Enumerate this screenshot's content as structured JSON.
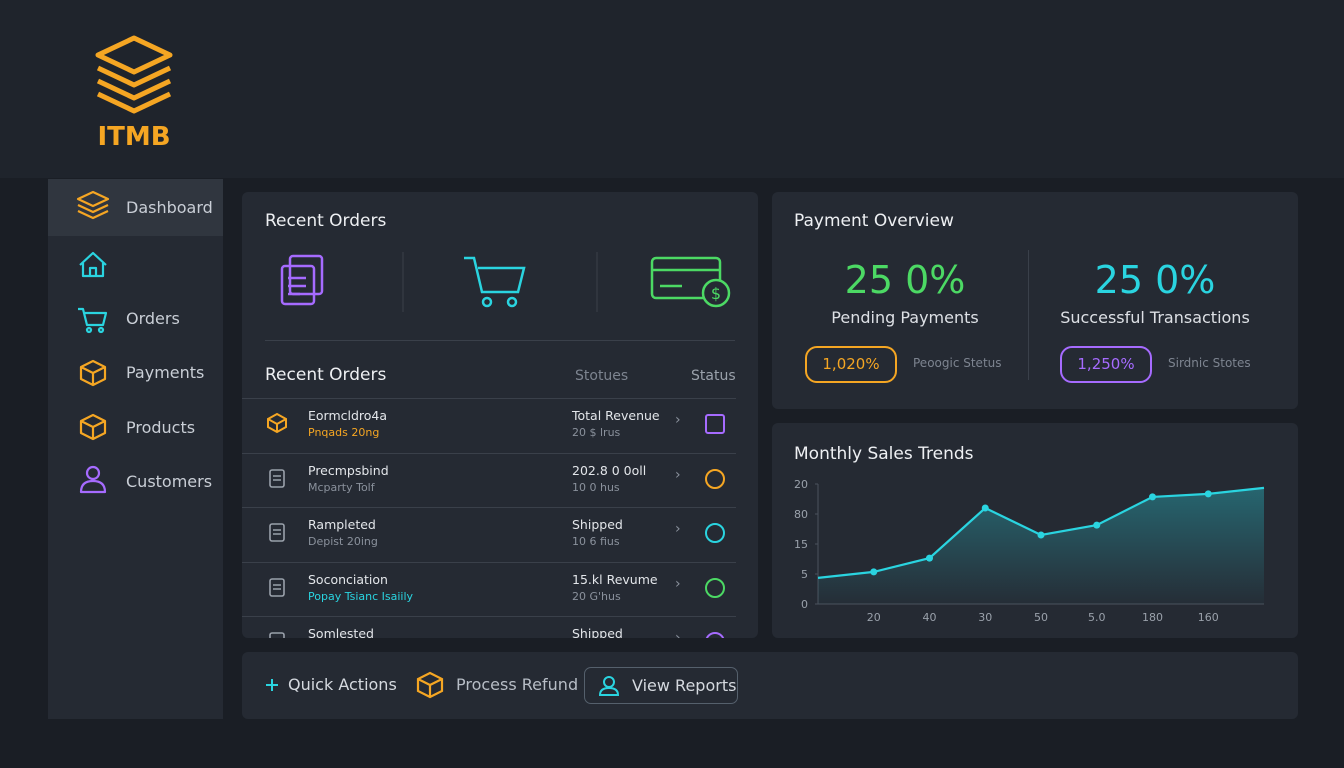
{
  "logo": {
    "text": "ITMB"
  },
  "sidebar": {
    "items": [
      "Dashboard",
      "Orders",
      "Payments",
      "Products",
      "Customers"
    ]
  },
  "recent_orders": {
    "title": "Recent Orders",
    "list_title": "Recent Orders",
    "columns": [
      "Stotues",
      "Status"
    ],
    "rows": [
      {
        "name": "Eormcldro4a",
        "sub": "Pnqads 20ng",
        "info": "Total Revenue",
        "info_sub": "20 $ lrus"
      },
      {
        "name": "Precmpsbind",
        "sub": "Mcparty Tolf",
        "info": "202.8 0 0oll",
        "info_sub": "10 0 hus"
      },
      {
        "name": "Rampleted",
        "sub": "Depist 20ing",
        "info": "Shipped",
        "info_sub": "10 6 fius"
      },
      {
        "name": "Soconciation",
        "sub": "Popay Tsianc Isaiily",
        "info": "15.kl Revume",
        "info_sub": "20 G'hus"
      },
      {
        "name": "Somlested",
        "info": "Shipped"
      }
    ]
  },
  "payment_overview": {
    "title": "Payment Overview",
    "stats": [
      {
        "value": "25 0%",
        "label": "Pending Payments",
        "badge": "1,020%",
        "note": "Peoogic Stetus"
      },
      {
        "value": "25 0%",
        "label": "Successful Transactions",
        "badge": "1,250%",
        "note": "Sirdnic Stotes"
      }
    ]
  },
  "chart_data": {
    "type": "line",
    "title": "Monthly Sales Trends",
    "categories": [
      null,
      "20",
      "40",
      "30",
      "50",
      "5.0",
      "180",
      "160",
      null
    ],
    "series": [
      {
        "color": "#2ad4e0",
        "values": [
          0.87,
          1.07,
          1.53,
          3.2,
          2.3,
          2.63,
          3.57,
          3.67,
          3.87
        ]
      }
    ],
    "ylim": [
      0,
      4
    ],
    "yticks": [
      {
        "value": 0,
        "label": "0"
      },
      {
        "value": 1,
        "label": "5"
      },
      {
        "value": 2,
        "label": "15"
      },
      {
        "value": 3,
        "label": "80"
      },
      {
        "value": 4,
        "label": "20"
      }
    ]
  },
  "quick_actions": {
    "items": [
      "Quick Actions",
      "Process Refund",
      "View Reports"
    ]
  }
}
